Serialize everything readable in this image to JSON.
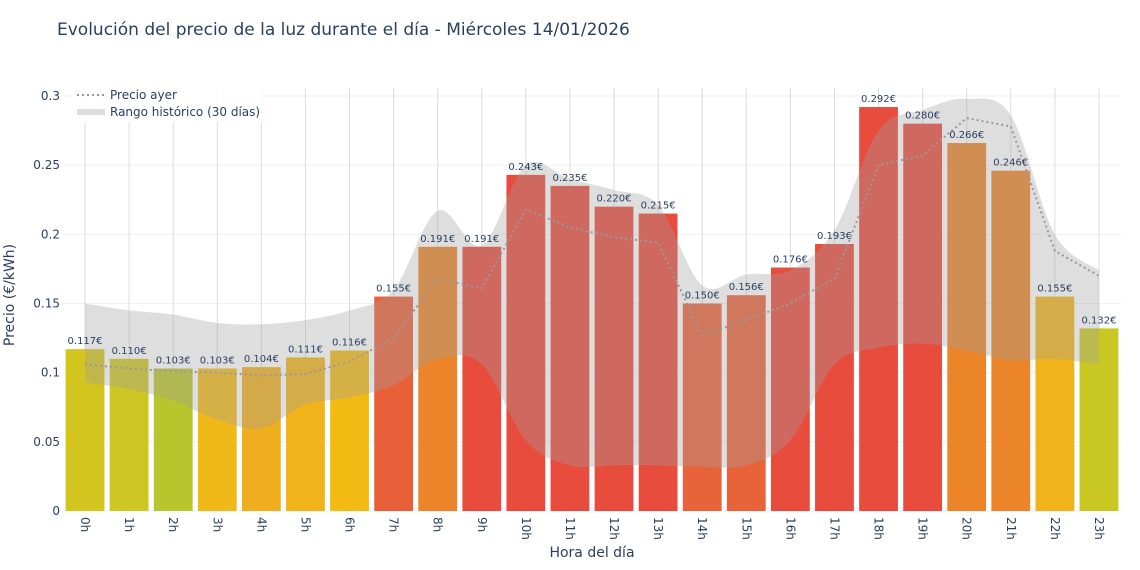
{
  "chart_data": {
    "type": "bar",
    "title": "Evolución del precio de la luz durante el día - Miércoles 14/01/2026",
    "xlabel": "Hora del día",
    "ylabel": "Precio (€/kWh)",
    "ylim": [
      0,
      0.31
    ],
    "yticks": [
      0,
      0.05,
      0.1,
      0.15,
      0.2,
      0.25,
      0.3
    ],
    "ytick_labels": [
      "0",
      "0.05",
      "0.1",
      "0.15",
      "0.2",
      "0.25",
      "0.3"
    ],
    "grid": true,
    "legend_placement": "top-left",
    "categories": [
      "0h",
      "1h",
      "2h",
      "3h",
      "4h",
      "5h",
      "6h",
      "7h",
      "8h",
      "9h",
      "10h",
      "11h",
      "12h",
      "13h",
      "14h",
      "15h",
      "16h",
      "17h",
      "18h",
      "19h",
      "20h",
      "21h",
      "22h",
      "23h"
    ],
    "values": [
      0.117,
      0.11,
      0.103,
      0.103,
      0.104,
      0.111,
      0.116,
      0.155,
      0.191,
      0.191,
      0.243,
      0.235,
      0.22,
      0.215,
      0.15,
      0.156,
      0.176,
      0.193,
      0.292,
      0.28,
      0.266,
      0.246,
      0.155,
      0.132
    ],
    "data_labels": [
      "0.117€",
      "0.110€",
      "0.103€",
      "0.103€",
      "0.104€",
      "0.111€",
      "0.116€",
      "0.155€",
      "0.191€",
      "0.191€",
      "0.243€",
      "0.235€",
      "0.220€",
      "0.215€",
      "0.150€",
      "0.156€",
      "0.176€",
      "0.193€",
      "0.292€",
      "0.280€",
      "0.266€",
      "0.246€",
      "0.155€",
      "0.132€"
    ],
    "bar_colors": [
      "#d4c41e",
      "#cdc623",
      "#b8c52c",
      "#f0b917",
      "#eeae1d",
      "#f0b31a",
      "#f2bb14",
      "#e8603a",
      "#ec8429",
      "#e84c3d",
      "#e84c3d",
      "#e84c3d",
      "#e84c3d",
      "#e84c3d",
      "#e8633a",
      "#e8633a",
      "#e84c3d",
      "#e84c3d",
      "#e84c3d",
      "#e84c3d",
      "#ec8429",
      "#ec8429",
      "#f0b41a",
      "#c9c823"
    ],
    "series": [
      {
        "name": "Precio ayer",
        "style": "dotted",
        "color": "#999999",
        "values": [
          0.106,
          0.103,
          0.101,
          0.1,
          0.098,
          0.099,
          0.108,
          0.125,
          0.168,
          0.161,
          0.218,
          0.205,
          0.198,
          0.194,
          0.127,
          0.138,
          0.15,
          0.168,
          0.25,
          0.257,
          0.284,
          0.278,
          0.188,
          0.17
        ]
      },
      {
        "name": "Rango histórico (30 días)",
        "style": "band",
        "color": "#cccccc",
        "upper": [
          0.15,
          0.145,
          0.142,
          0.136,
          0.135,
          0.138,
          0.145,
          0.16,
          0.217,
          0.192,
          0.25,
          0.24,
          0.232,
          0.221,
          0.163,
          0.171,
          0.174,
          0.203,
          0.275,
          0.29,
          0.298,
          0.286,
          0.2,
          0.174
        ],
        "lower": [
          0.093,
          0.088,
          0.08,
          0.066,
          0.06,
          0.077,
          0.082,
          0.091,
          0.11,
          0.106,
          0.051,
          0.033,
          0.033,
          0.033,
          0.032,
          0.033,
          0.051,
          0.106,
          0.118,
          0.121,
          0.116,
          0.109,
          0.11,
          0.106
        ]
      }
    ]
  }
}
